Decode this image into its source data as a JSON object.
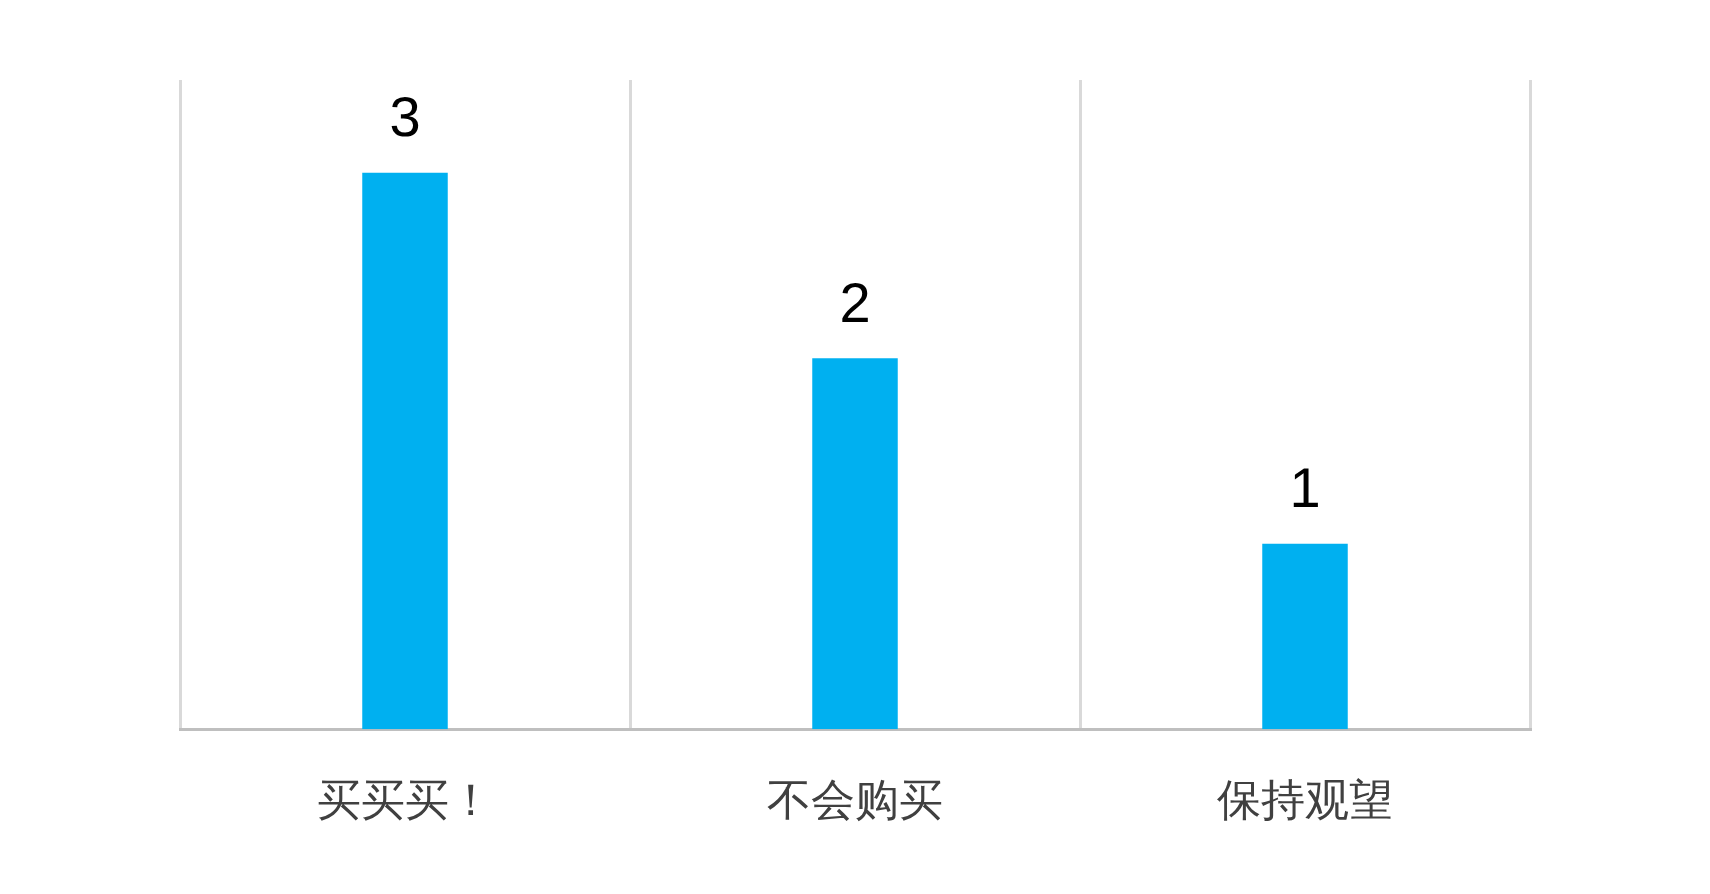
{
  "chart_data": {
    "type": "bar",
    "categories": [
      "买买买！",
      "不会购买",
      "保持观望"
    ],
    "values": [
      3,
      2,
      1
    ],
    "color": "#00b0f0",
    "data_labels": true,
    "ylim": [
      0,
      3.5
    ],
    "grid": "x",
    "tick_labels": "x",
    "legend": false
  }
}
